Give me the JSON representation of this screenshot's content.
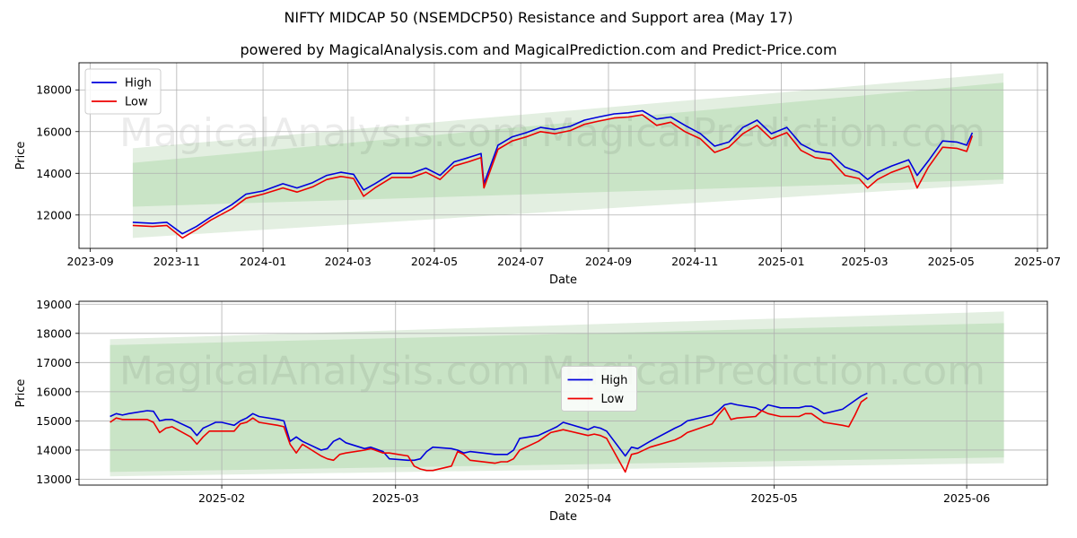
{
  "title": "NIFTY MIDCAP 50 (NSEMDCP50) Resistance and Support area (May 17)",
  "subtitle": "powered by MagicalAnalysis.com and MagicalPrediction.com and Predict-Price.com",
  "watermarks": [
    "MagicalAnalysis.com",
    "MagicalPrediction.com"
  ],
  "colors": {
    "high": "#0000dd",
    "low": "#ee0000",
    "band_outer": "#e3efe1",
    "band_inner": "#c9e4c6",
    "grid": "#b0b0b0"
  },
  "chart_data": [
    {
      "type": "line",
      "xlabel": "Date",
      "ylabel": "Price",
      "x_ticks": [
        "2023-09",
        "2023-11",
        "2024-01",
        "2024-03",
        "2024-05",
        "2024-07",
        "2024-09",
        "2024-11",
        "2025-01",
        "2025-03",
        "2025-05",
        "2025-07"
      ],
      "y_ticks": [
        "12000",
        "14000",
        "16000",
        "18000"
      ],
      "ylim": [
        10400,
        19300
      ],
      "xlim": [
        "2023-08-24",
        "2025-07-08"
      ],
      "legend": {
        "position": "top-left",
        "entries": [
          "High",
          "Low"
        ]
      },
      "grid": true,
      "bands": [
        {
          "name": "outer",
          "x": [
            "2023-10-01",
            "2025-06-07"
          ],
          "lower": [
            10900,
            13500
          ],
          "upper": [
            15200,
            18800
          ]
        },
        {
          "name": "inner",
          "x": [
            "2023-10-01",
            "2025-06-07"
          ],
          "lower": [
            12400,
            13700
          ],
          "upper": [
            14500,
            18350
          ]
        }
      ],
      "series": [
        {
          "name": "High",
          "x": [
            "2023-10-01",
            "2023-10-15",
            "2023-10-25",
            "2023-11-05",
            "2023-11-15",
            "2023-11-25",
            "2023-12-10",
            "2023-12-20",
            "2024-01-01",
            "2024-01-15",
            "2024-01-25",
            "2024-02-05",
            "2024-02-15",
            "2024-02-25",
            "2024-03-05",
            "2024-03-12",
            "2024-03-20",
            "2024-04-01",
            "2024-04-15",
            "2024-04-25",
            "2024-05-05",
            "2024-05-15",
            "2024-05-25",
            "2024-06-03",
            "2024-06-05",
            "2024-06-15",
            "2024-06-25",
            "2024-07-05",
            "2024-07-15",
            "2024-07-25",
            "2024-08-05",
            "2024-08-15",
            "2024-08-25",
            "2024-09-05",
            "2024-09-15",
            "2024-09-25",
            "2024-10-05",
            "2024-10-15",
            "2024-10-25",
            "2024-11-05",
            "2024-11-15",
            "2024-11-25",
            "2024-12-05",
            "2024-12-15",
            "2024-12-25",
            "2025-01-05",
            "2025-01-15",
            "2025-01-25",
            "2025-02-05",
            "2025-02-15",
            "2025-02-25",
            "2025-03-03",
            "2025-03-10",
            "2025-03-20",
            "2025-04-01",
            "2025-04-07",
            "2025-04-15",
            "2025-04-25",
            "2025-05-05",
            "2025-05-12",
            "2025-05-16"
          ],
          "values": [
            11650,
            11600,
            11650,
            11100,
            11450,
            11900,
            12500,
            13000,
            13150,
            13500,
            13300,
            13550,
            13900,
            14050,
            13950,
            13200,
            13500,
            14000,
            14000,
            14250,
            13900,
            14550,
            14750,
            14950,
            13500,
            15350,
            15750,
            15950,
            16200,
            16100,
            16250,
            16550,
            16700,
            16850,
            16900,
            17000,
            16600,
            16700,
            16300,
            15900,
            15300,
            15500,
            16200,
            16550,
            15900,
            16200,
            15400,
            15050,
            14950,
            14300,
            14050,
            13700,
            14050,
            14350,
            14650,
            13900,
            14600,
            15550,
            15500,
            15350,
            15950
          ]
        },
        {
          "name": "Low",
          "x": [
            "2023-10-01",
            "2023-10-15",
            "2023-10-25",
            "2023-11-05",
            "2023-11-15",
            "2023-11-25",
            "2023-12-10",
            "2023-12-20",
            "2024-01-01",
            "2024-01-15",
            "2024-01-25",
            "2024-02-05",
            "2024-02-15",
            "2024-02-25",
            "2024-03-05",
            "2024-03-12",
            "2024-03-20",
            "2024-04-01",
            "2024-04-15",
            "2024-04-25",
            "2024-05-05",
            "2024-05-15",
            "2024-05-25",
            "2024-06-03",
            "2024-06-05",
            "2024-06-15",
            "2024-06-25",
            "2024-07-05",
            "2024-07-15",
            "2024-07-25",
            "2024-08-05",
            "2024-08-15",
            "2024-08-25",
            "2024-09-05",
            "2024-09-15",
            "2024-09-25",
            "2024-10-05",
            "2024-10-15",
            "2024-10-25",
            "2024-11-05",
            "2024-11-15",
            "2024-11-25",
            "2024-12-05",
            "2024-12-15",
            "2024-12-25",
            "2025-01-05",
            "2025-01-15",
            "2025-01-25",
            "2025-02-05",
            "2025-02-15",
            "2025-02-25",
            "2025-03-03",
            "2025-03-10",
            "2025-03-20",
            "2025-04-01",
            "2025-04-07",
            "2025-04-15",
            "2025-04-25",
            "2025-05-05",
            "2025-05-12",
            "2025-05-16"
          ],
          "values": [
            11500,
            11450,
            11500,
            10900,
            11300,
            11750,
            12300,
            12800,
            13000,
            13300,
            13100,
            13350,
            13700,
            13850,
            13750,
            12900,
            13300,
            13800,
            13800,
            14050,
            13700,
            14350,
            14550,
            14750,
            13300,
            15150,
            15550,
            15750,
            16000,
            15900,
            16050,
            16350,
            16500,
            16650,
            16700,
            16800,
            16300,
            16450,
            16000,
            15650,
            15000,
            15250,
            15900,
            16300,
            15650,
            15950,
            15100,
            14750,
            14650,
            13900,
            13750,
            13300,
            13700,
            14050,
            14350,
            13300,
            14300,
            15250,
            15200,
            15050,
            15800
          ]
        }
      ]
    },
    {
      "type": "line",
      "xlabel": "Date",
      "ylabel": "Price",
      "x_ticks": [
        "2025-02",
        "2025-03",
        "2025-04",
        "2025-05",
        "2025-06"
      ],
      "y_ticks": [
        "13000",
        "14000",
        "15000",
        "16000",
        "17000",
        "18000",
        "19000"
      ],
      "ylim": [
        12800,
        19100
      ],
      "xlim": [
        "2025-01-09",
        "2025-06-14"
      ],
      "legend": {
        "position": "center",
        "entries": [
          "High",
          "Low"
        ]
      },
      "grid": true,
      "bands": [
        {
          "name": "outer",
          "x": [
            "2025-01-14",
            "2025-06-07"
          ],
          "lower": [
            13100,
            13550
          ],
          "upper": [
            17800,
            18750
          ]
        },
        {
          "name": "inner",
          "x": [
            "2025-01-14",
            "2025-06-07"
          ],
          "lower": [
            13250,
            13750
          ],
          "upper": [
            17600,
            18350
          ]
        }
      ],
      "series": [
        {
          "name": "High",
          "x": [
            "2025-01-14",
            "2025-01-15",
            "2025-01-16",
            "2025-01-17",
            "2025-01-20",
            "2025-01-21",
            "2025-01-22",
            "2025-01-23",
            "2025-01-24",
            "2025-01-27",
            "2025-01-28",
            "2025-01-29",
            "2025-01-30",
            "2025-01-31",
            "2025-02-01",
            "2025-02-03",
            "2025-02-04",
            "2025-02-05",
            "2025-02-06",
            "2025-02-07",
            "2025-02-10",
            "2025-02-11",
            "2025-02-12",
            "2025-02-13",
            "2025-02-14",
            "2025-02-17",
            "2025-02-18",
            "2025-02-19",
            "2025-02-20",
            "2025-02-21",
            "2025-02-24",
            "2025-02-25",
            "2025-02-27",
            "2025-02-28",
            "2025-03-03",
            "2025-03-04",
            "2025-03-05",
            "2025-03-06",
            "2025-03-07",
            "2025-03-10",
            "2025-03-11",
            "2025-03-12",
            "2025-03-13",
            "2025-03-17",
            "2025-03-18",
            "2025-03-19",
            "2025-03-20",
            "2025-03-21",
            "2025-03-24",
            "2025-03-25",
            "2025-03-26",
            "2025-03-27",
            "2025-03-28",
            "2025-04-01",
            "2025-04-02",
            "2025-04-03",
            "2025-04-04",
            "2025-04-07",
            "2025-04-08",
            "2025-04-09",
            "2025-04-11",
            "2025-04-15",
            "2025-04-16",
            "2025-04-17",
            "2025-04-21",
            "2025-04-22",
            "2025-04-23",
            "2025-04-24",
            "2025-04-25",
            "2025-04-28",
            "2025-04-29",
            "2025-04-30",
            "2025-05-02",
            "2025-05-05",
            "2025-05-06",
            "2025-05-07",
            "2025-05-08",
            "2025-05-09",
            "2025-05-12",
            "2025-05-13",
            "2025-05-14",
            "2025-05-15",
            "2025-05-16"
          ],
          "values": [
            15150,
            15250,
            15200,
            15250,
            15350,
            15330,
            15000,
            15050,
            15050,
            14750,
            14500,
            14750,
            14850,
            14950,
            14950,
            14850,
            15000,
            15100,
            15250,
            15150,
            15050,
            15000,
            14300,
            14450,
            14300,
            14000,
            14050,
            14300,
            14400,
            14250,
            14050,
            14100,
            13950,
            13700,
            13650,
            13650,
            13700,
            13950,
            14100,
            14050,
            14000,
            13900,
            13950,
            13850,
            13850,
            13850,
            14000,
            14400,
            14500,
            14600,
            14700,
            14800,
            14950,
            14700,
            14800,
            14750,
            14650,
            13800,
            14100,
            14050,
            14300,
            14750,
            14850,
            15000,
            15200,
            15350,
            15550,
            15600,
            15550,
            15450,
            15350,
            15550,
            15450,
            15450,
            15500,
            15500,
            15400,
            15250,
            15400,
            15550,
            15700,
            15850,
            15950
          ]
        },
        {
          "name": "Low",
          "x": [
            "2025-01-14",
            "2025-01-15",
            "2025-01-16",
            "2025-01-17",
            "2025-01-20",
            "2025-01-21",
            "2025-01-22",
            "2025-01-23",
            "2025-01-24",
            "2025-01-27",
            "2025-01-28",
            "2025-01-29",
            "2025-01-30",
            "2025-01-31",
            "2025-02-01",
            "2025-02-03",
            "2025-02-04",
            "2025-02-05",
            "2025-02-06",
            "2025-02-07",
            "2025-02-10",
            "2025-02-11",
            "2025-02-12",
            "2025-02-13",
            "2025-02-14",
            "2025-02-17",
            "2025-02-18",
            "2025-02-19",
            "2025-02-20",
            "2025-02-21",
            "2025-02-24",
            "2025-02-25",
            "2025-02-27",
            "2025-02-28",
            "2025-03-03",
            "2025-03-04",
            "2025-03-05",
            "2025-03-06",
            "2025-03-07",
            "2025-03-10",
            "2025-03-11",
            "2025-03-12",
            "2025-03-13",
            "2025-03-17",
            "2025-03-18",
            "2025-03-19",
            "2025-03-20",
            "2025-03-21",
            "2025-03-24",
            "2025-03-25",
            "2025-03-26",
            "2025-03-27",
            "2025-03-28",
            "2025-04-01",
            "2025-04-02",
            "2025-04-03",
            "2025-04-04",
            "2025-04-07",
            "2025-04-08",
            "2025-04-09",
            "2025-04-11",
            "2025-04-15",
            "2025-04-16",
            "2025-04-17",
            "2025-04-21",
            "2025-04-22",
            "2025-04-23",
            "2025-04-24",
            "2025-04-25",
            "2025-04-28",
            "2025-04-29",
            "2025-04-30",
            "2025-05-02",
            "2025-05-05",
            "2025-05-06",
            "2025-05-07",
            "2025-05-08",
            "2025-05-09",
            "2025-05-12",
            "2025-05-13",
            "2025-05-14",
            "2025-05-15",
            "2025-05-16"
          ],
          "values": [
            14950,
            15100,
            15050,
            15050,
            15050,
            14950,
            14600,
            14750,
            14800,
            14450,
            14200,
            14450,
            14650,
            14650,
            14650,
            14650,
            14900,
            14950,
            15100,
            14950,
            14850,
            14800,
            14200,
            13900,
            14200,
            13800,
            13700,
            13650,
            13850,
            13900,
            14000,
            14050,
            13900,
            13900,
            13800,
            13450,
            13350,
            13300,
            13300,
            13450,
            13950,
            13850,
            13650,
            13550,
            13600,
            13600,
            13700,
            14000,
            14300,
            14450,
            14600,
            14650,
            14700,
            14500,
            14550,
            14500,
            14400,
            13250,
            13850,
            13900,
            14100,
            14350,
            14450,
            14600,
            14900,
            15200,
            15450,
            15050,
            15100,
            15150,
            15350,
            15250,
            15150,
            15150,
            15250,
            15250,
            15100,
            14950,
            14850,
            14800,
            15200,
            15650,
            15800
          ]
        }
      ]
    }
  ]
}
